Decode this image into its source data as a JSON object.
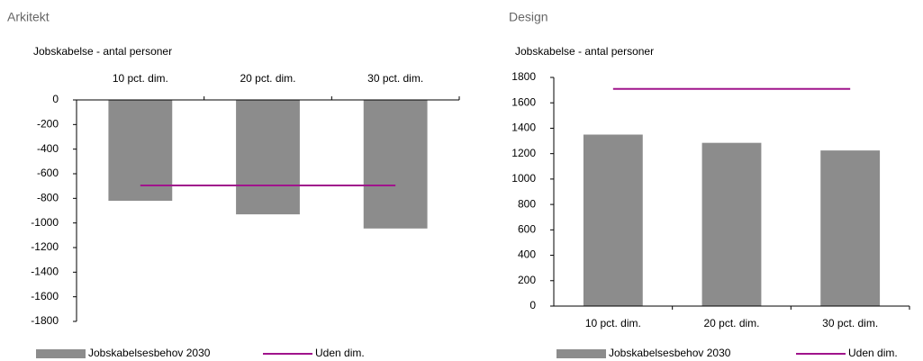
{
  "chart_data": [
    {
      "type": "bar",
      "title": "Arkitekt",
      "subtitle": "Jobskabelse - antal personer",
      "categories": [
        "10 pct. dim.",
        "20 pct. dim.",
        "30 pct. dim."
      ],
      "series": [
        {
          "name": "Jobskabelsesbehov 2030",
          "color": "#8c8c8c",
          "type": "bar",
          "values": [
            -820,
            -930,
            -1045
          ]
        },
        {
          "name": "Uden dim.",
          "color": "#a0148c",
          "type": "line",
          "values": [
            -695,
            -695,
            -695
          ]
        }
      ],
      "ylim": [
        -1800,
        0
      ],
      "yticks": [
        0,
        -200,
        -400,
        -600,
        -800,
        -1000,
        -1200,
        -1400,
        -1600,
        -1800
      ]
    },
    {
      "type": "bar",
      "title": "Design",
      "subtitle": "Jobskabelse - antal personer",
      "categories": [
        "10 pct. dim.",
        "20 pct. dim.",
        "30 pct. dim."
      ],
      "series": [
        {
          "name": "Jobskabelsesbehov 2030",
          "color": "#8c8c8c",
          "type": "bar",
          "values": [
            1350,
            1285,
            1225
          ]
        },
        {
          "name": "Uden dim.",
          "color": "#a0148c",
          "type": "line",
          "values": [
            1710,
            1710,
            1710
          ]
        }
      ],
      "ylim": [
        0,
        1800
      ],
      "yticks": [
        0,
        200,
        400,
        600,
        800,
        1000,
        1200,
        1400,
        1600,
        1800
      ]
    }
  ]
}
